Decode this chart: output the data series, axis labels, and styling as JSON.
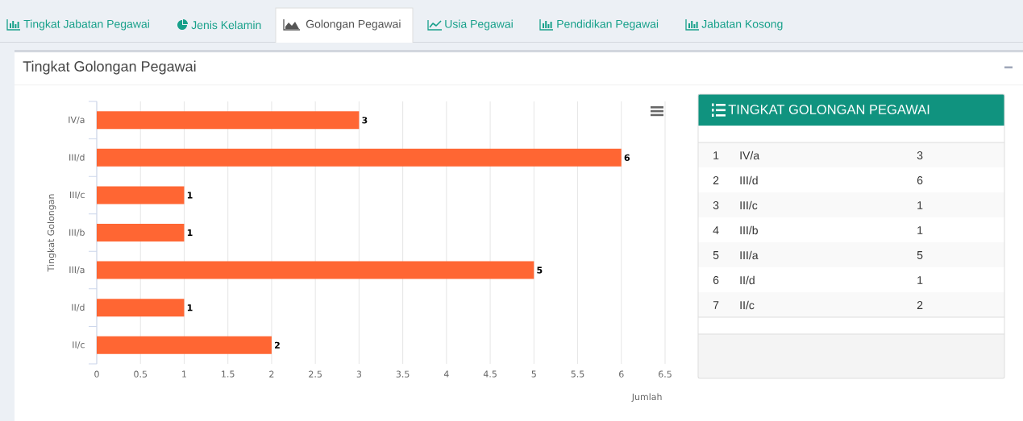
{
  "chart_data": {
    "type": "bar",
    "orientation": "horizontal",
    "title": "Tingkat Golongan Pegawai",
    "xlabel": "Jumlah",
    "ylabel": "Tingkat Golongan",
    "categories": [
      "IV/a",
      "III/d",
      "III/c",
      "III/b",
      "III/a",
      "II/d",
      "II/c"
    ],
    "values": [
      3,
      6,
      1,
      1,
      5,
      1,
      2
    ],
    "color": "#ff6633",
    "xlim": [
      0,
      6.5
    ],
    "xticks": [
      0,
      0.5,
      1,
      1.5,
      2,
      2.5,
      3,
      3.5,
      4,
      4.5,
      5,
      5.5,
      6,
      6.5
    ],
    "grid": "x",
    "data_labels": true,
    "annotations": [
      "Tingkat Jabatan Pegawai",
      "Jenis Kelamin",
      "Golongan Pegawai",
      "Usia Pegawai",
      "Pendidikan Pegawai",
      "Jabatan Kosong",
      "TINGKAT GOLONGAN PEGAWAI",
      "1",
      "2",
      "3",
      "4",
      "5",
      "6",
      "7",
      "3",
      "6",
      "1",
      "1",
      "5",
      "1",
      "2"
    ]
  }
}
